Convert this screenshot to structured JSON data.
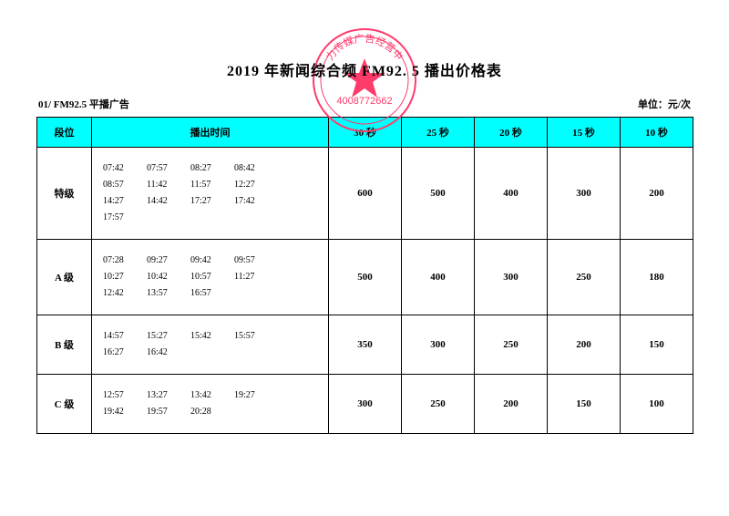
{
  "stamp": {
    "outer_text": "力传媒广告经营中",
    "center_text": "4008772662",
    "color": "#ff3b6b"
  },
  "title": "2019 年新闻综合频     FM92. 5 播出价格表",
  "subtitle_left": "01/ FM92.5   平播广告",
  "subtitle_right": "单位：元/次",
  "header_bg": "#00ffff",
  "columns": {
    "level": "段位",
    "times": "播出时间",
    "p30": "30 秒",
    "p25": "25 秒",
    "p20": "20 秒",
    "p15": "15 秒",
    "p10": "10 秒"
  },
  "rows": [
    {
      "level": "特级",
      "times": [
        "07:42",
        "07:57",
        "08:27",
        "08:42",
        "08:57",
        "11:42",
        "11:57",
        "12:27",
        "14:27",
        "14:42",
        "17:27",
        "17:42",
        "17:57"
      ],
      "p30": "600",
      "p25": "500",
      "p20": "400",
      "p15": "300",
      "p10": "200"
    },
    {
      "level": "A 级",
      "times": [
        "07:28",
        "09:27",
        "09:42",
        "09:57",
        "10:27",
        "10:42",
        "10:57",
        "11:27",
        "12:42",
        "13:57",
        "16:57"
      ],
      "p30": "500",
      "p25": "400",
      "p20": "300",
      "p15": "250",
      "p10": "180"
    },
    {
      "level": "B 级",
      "times": [
        "14:57",
        "15:27",
        "15:42",
        "15:57",
        "16:27",
        "16:42"
      ],
      "p30": "350",
      "p25": "300",
      "p20": "250",
      "p15": "200",
      "p10": "150"
    },
    {
      "level": "C 级",
      "times": [
        "12:57",
        "13:27",
        "13:42",
        "19:27",
        "19:42",
        "19:57",
        "20:28"
      ],
      "p30": "300",
      "p25": "250",
      "p20": "200",
      "p15": "150",
      "p10": "100"
    }
  ]
}
